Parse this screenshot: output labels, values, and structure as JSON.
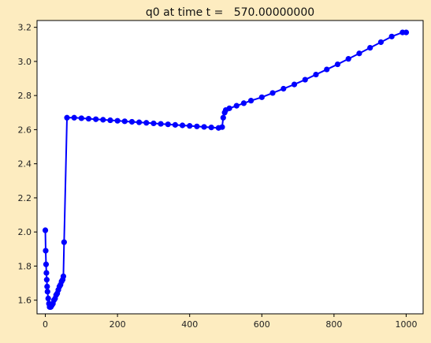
{
  "chart_data": {
    "type": "line",
    "title": "q0 at time t =   570.00000000",
    "xlabel": "",
    "ylabel": "",
    "xlim": [
      -23,
      1047
    ],
    "ylim": [
      1.52,
      3.24
    ],
    "x_ticks": [
      0,
      200,
      400,
      600,
      800,
      1000
    ],
    "x_tick_labels": [
      "0",
      "200",
      "400",
      "600",
      "800",
      "1000"
    ],
    "y_ticks": [
      1.6,
      1.8,
      2.0,
      2.2,
      2.4,
      2.6,
      2.8,
      3.0,
      3.2
    ],
    "y_tick_labels": [
      "1.6",
      "1.8",
      "2.0",
      "2.2",
      "2.4",
      "2.6",
      "2.8",
      "3.0",
      "3.2"
    ],
    "grid": false,
    "legend": "none",
    "colors": {
      "series": "#0000ff",
      "figure_background": "#fdecc0",
      "axes_background": "#ffffff"
    },
    "series": [
      {
        "marker": "circle",
        "x": [
          0,
          1,
          2,
          3,
          4,
          5,
          6,
          8,
          10,
          12,
          15,
          18,
          21,
          24,
          27,
          30,
          33,
          36,
          39,
          42,
          45,
          48,
          50,
          52,
          60,
          80,
          100,
          120,
          140,
          160,
          180,
          200,
          220,
          240,
          260,
          280,
          300,
          320,
          340,
          360,
          380,
          400,
          420,
          440,
          460,
          480,
          490,
          493,
          497,
          500,
          510,
          530,
          550,
          570,
          600,
          630,
          660,
          690,
          720,
          750,
          780,
          810,
          840,
          870,
          900,
          930,
          960,
          990,
          1000
        ],
        "y": [
          2.01,
          1.89,
          1.81,
          1.76,
          1.72,
          1.68,
          1.65,
          1.61,
          1.58,
          1.56,
          1.56,
          1.57,
          1.58,
          1.6,
          1.61,
          1.63,
          1.64,
          1.66,
          1.68,
          1.69,
          1.71,
          1.72,
          1.74,
          1.94,
          2.67,
          2.67,
          2.667,
          2.664,
          2.661,
          2.658,
          2.655,
          2.652,
          2.649,
          2.646,
          2.643,
          2.64,
          2.637,
          2.634,
          2.631,
          2.628,
          2.625,
          2.622,
          2.619,
          2.616,
          2.613,
          2.61,
          2.615,
          2.67,
          2.7,
          2.715,
          2.725,
          2.74,
          2.755,
          2.77,
          2.79,
          2.815,
          2.84,
          2.865,
          2.893,
          2.923,
          2.953,
          2.983,
          3.015,
          3.047,
          3.08,
          3.113,
          3.146,
          3.17,
          3.17
        ]
      }
    ]
  }
}
